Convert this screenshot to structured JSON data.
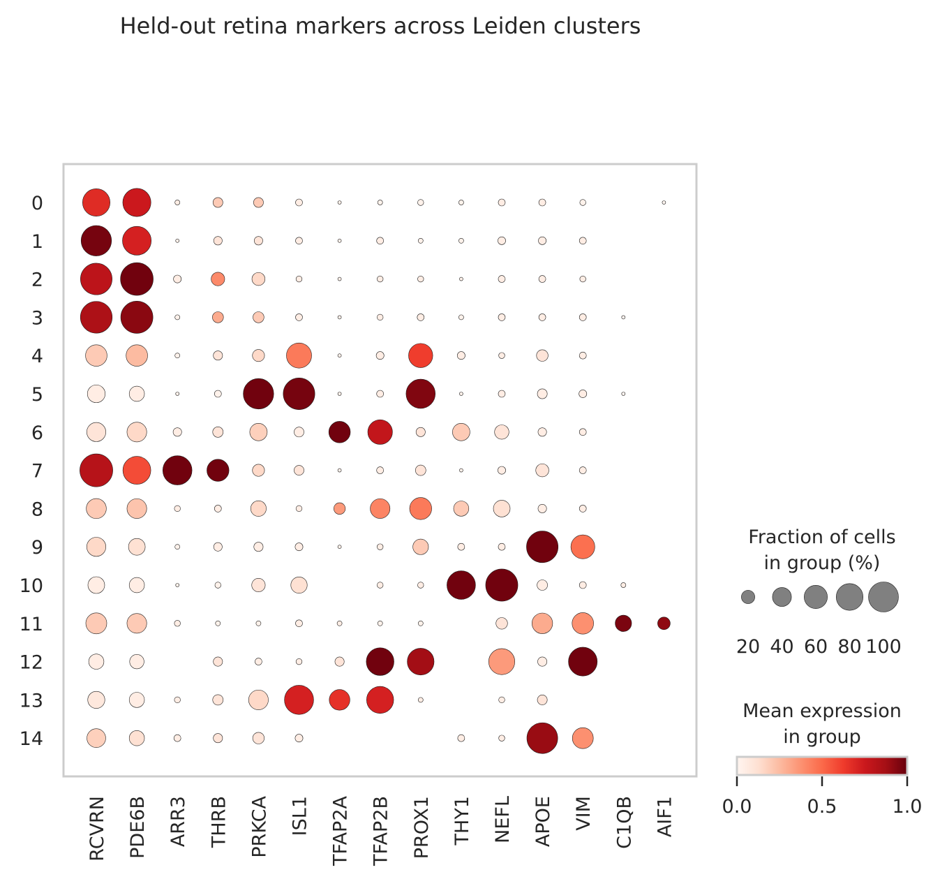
{
  "chart_data": {
    "type": "dotplot",
    "title": "Held-out retina markers across Leiden clusters",
    "genes": [
      "RCVRN",
      "PDE6B",
      "ARR3",
      "THRB",
      "PRKCA",
      "ISL1",
      "TFAP2A",
      "TFAP2B",
      "PROX1",
      "THY1",
      "NEFL",
      "APOE",
      "VIM",
      "C1QB",
      "AIF1"
    ],
    "clusters": [
      "0",
      "1",
      "2",
      "3",
      "4",
      "5",
      "6",
      "7",
      "8",
      "9",
      "10",
      "11",
      "12",
      "13",
      "14"
    ],
    "fraction_pct": [
      [
        62,
        65,
        2,
        8,
        8,
        4,
        1,
        2,
        3,
        2,
        4,
        4,
        3,
        0,
        1
      ],
      [
        76,
        68,
        1,
        6,
        6,
        4,
        1,
        4,
        2,
        2,
        5,
        5,
        4,
        0,
        0
      ],
      [
        82,
        88,
        5,
        15,
        14,
        3,
        1,
        3,
        3,
        1,
        4,
        4,
        3,
        0,
        0
      ],
      [
        83,
        85,
        2,
        10,
        10,
        4,
        1,
        3,
        4,
        2,
        4,
        4,
        4,
        1,
        0
      ],
      [
        38,
        38,
        2,
        7,
        12,
        52,
        1,
        5,
        48,
        5,
        3,
        11,
        4,
        0,
        0
      ],
      [
        26,
        19,
        1,
        4,
        76,
        82,
        1,
        4,
        70,
        1,
        4,
        8,
        5,
        1,
        0
      ],
      [
        30,
        32,
        6,
        9,
        25,
        8,
        38,
        50,
        7,
        25,
        17,
        6,
        4,
        0,
        0
      ],
      [
        89,
        64,
        70,
        40,
        12,
        8,
        1,
        4,
        9,
        1,
        5,
        14,
        4,
        0,
        0
      ],
      [
        33,
        32,
        3,
        4,
        20,
        3,
        11,
        32,
        40,
        19,
        23,
        6,
        4,
        0,
        0
      ],
      [
        30,
        23,
        2,
        6,
        7,
        5,
        1,
        3,
        20,
        4,
        4,
        82,
        47,
        0,
        0
      ],
      [
        23,
        19,
        1,
        3,
        15,
        22,
        0,
        3,
        3,
        67,
        85,
        9,
        4,
        2,
        0
      ],
      [
        36,
        32,
        3,
        2,
        2,
        4,
        2,
        2,
        2,
        0,
        11,
        35,
        38,
        22,
        13
      ],
      [
        19,
        17,
        0,
        7,
        4,
        3,
        7,
        63,
        59,
        0,
        56,
        7,
        68,
        0,
        0
      ],
      [
        24,
        19,
        3,
        9,
        32,
        70,
        35,
        60,
        2,
        0,
        3,
        8,
        0,
        0,
        0
      ],
      [
        29,
        19,
        4,
        7,
        11,
        5,
        0,
        0,
        0,
        4,
        3,
        78,
        36,
        0,
        0
      ]
    ],
    "mean_expression": [
      [
        0.68,
        0.75,
        0.05,
        0.2,
        0.2,
        0.05,
        0.02,
        0.02,
        0.02,
        0.02,
        0.05,
        0.05,
        0.02,
        0,
        0
      ],
      [
        0.97,
        0.72,
        0.02,
        0.1,
        0.1,
        0.05,
        0.02,
        0.05,
        0.02,
        0.02,
        0.05,
        0.05,
        0.05,
        0,
        0
      ],
      [
        0.8,
        0.98,
        0.05,
        0.4,
        0.15,
        0.05,
        0.02,
        0.05,
        0.05,
        0.02,
        0.05,
        0.05,
        0.05,
        0,
        0
      ],
      [
        0.85,
        0.93,
        0.02,
        0.3,
        0.2,
        0.05,
        0.02,
        0.05,
        0.05,
        0.02,
        0.05,
        0.05,
        0.05,
        0,
        0
      ],
      [
        0.2,
        0.25,
        0.02,
        0.1,
        0.15,
        0.45,
        0.02,
        0.05,
        0.62,
        0.05,
        0.05,
        0.1,
        0.05,
        0,
        0
      ],
      [
        0.05,
        0.05,
        0.02,
        0.02,
        0.98,
        0.97,
        0.02,
        0.05,
        0.95,
        0.02,
        0.05,
        0.05,
        0.05,
        0,
        0
      ],
      [
        0.1,
        0.15,
        0.05,
        0.1,
        0.18,
        0.05,
        0.98,
        0.78,
        0.1,
        0.2,
        0.1,
        0.05,
        0.05,
        0,
        0
      ],
      [
        0.82,
        0.58,
        0.98,
        0.98,
        0.15,
        0.1,
        0.02,
        0.05,
        0.1,
        0.02,
        0.05,
        0.1,
        0.05,
        0,
        0
      ],
      [
        0.2,
        0.22,
        0.05,
        0.05,
        0.15,
        0.05,
        0.35,
        0.42,
        0.45,
        0.2,
        0.12,
        0.05,
        0.05,
        0,
        0
      ],
      [
        0.15,
        0.12,
        0.02,
        0.05,
        0.05,
        0.05,
        0.02,
        0.05,
        0.2,
        0.05,
        0.05,
        0.98,
        0.48,
        0,
        0
      ],
      [
        0.05,
        0.05,
        0.02,
        0.02,
        0.1,
        0.12,
        0,
        0.05,
        0.05,
        0.98,
        0.98,
        0.05,
        0.05,
        0.05,
        0
      ],
      [
        0.2,
        0.2,
        0.05,
        0.02,
        0.02,
        0.05,
        0.05,
        0.02,
        0.02,
        0,
        0.1,
        0.3,
        0.38,
        0.96,
        0.92
      ],
      [
        0.05,
        0.05,
        0,
        0.1,
        0.05,
        0.05,
        0.1,
        0.98,
        0.88,
        0,
        0.35,
        0.05,
        0.98,
        0,
        0
      ],
      [
        0.08,
        0.05,
        0.05,
        0.1,
        0.15,
        0.72,
        0.66,
        0.72,
        0.05,
        0,
        0.05,
        0.1,
        0,
        0,
        0
      ],
      [
        0.18,
        0.12,
        0.05,
        0.1,
        0.1,
        0.05,
        0,
        0,
        0,
        0.05,
        0.05,
        0.9,
        0.38,
        0,
        0
      ]
    ],
    "size_legend": {
      "title_line1": "Fraction of cells",
      "title_line2": "in group (%)",
      "values": [
        20,
        40,
        60,
        80,
        100
      ],
      "labels": [
        "20",
        "40",
        "60",
        "80",
        "100"
      ]
    },
    "color_legend": {
      "title_line1": "Mean expression",
      "title_line2": "in group",
      "range": [
        0,
        1
      ],
      "ticks": [
        "0.0",
        "0.5",
        "1.0"
      ],
      "colormap": "Reds"
    }
  }
}
